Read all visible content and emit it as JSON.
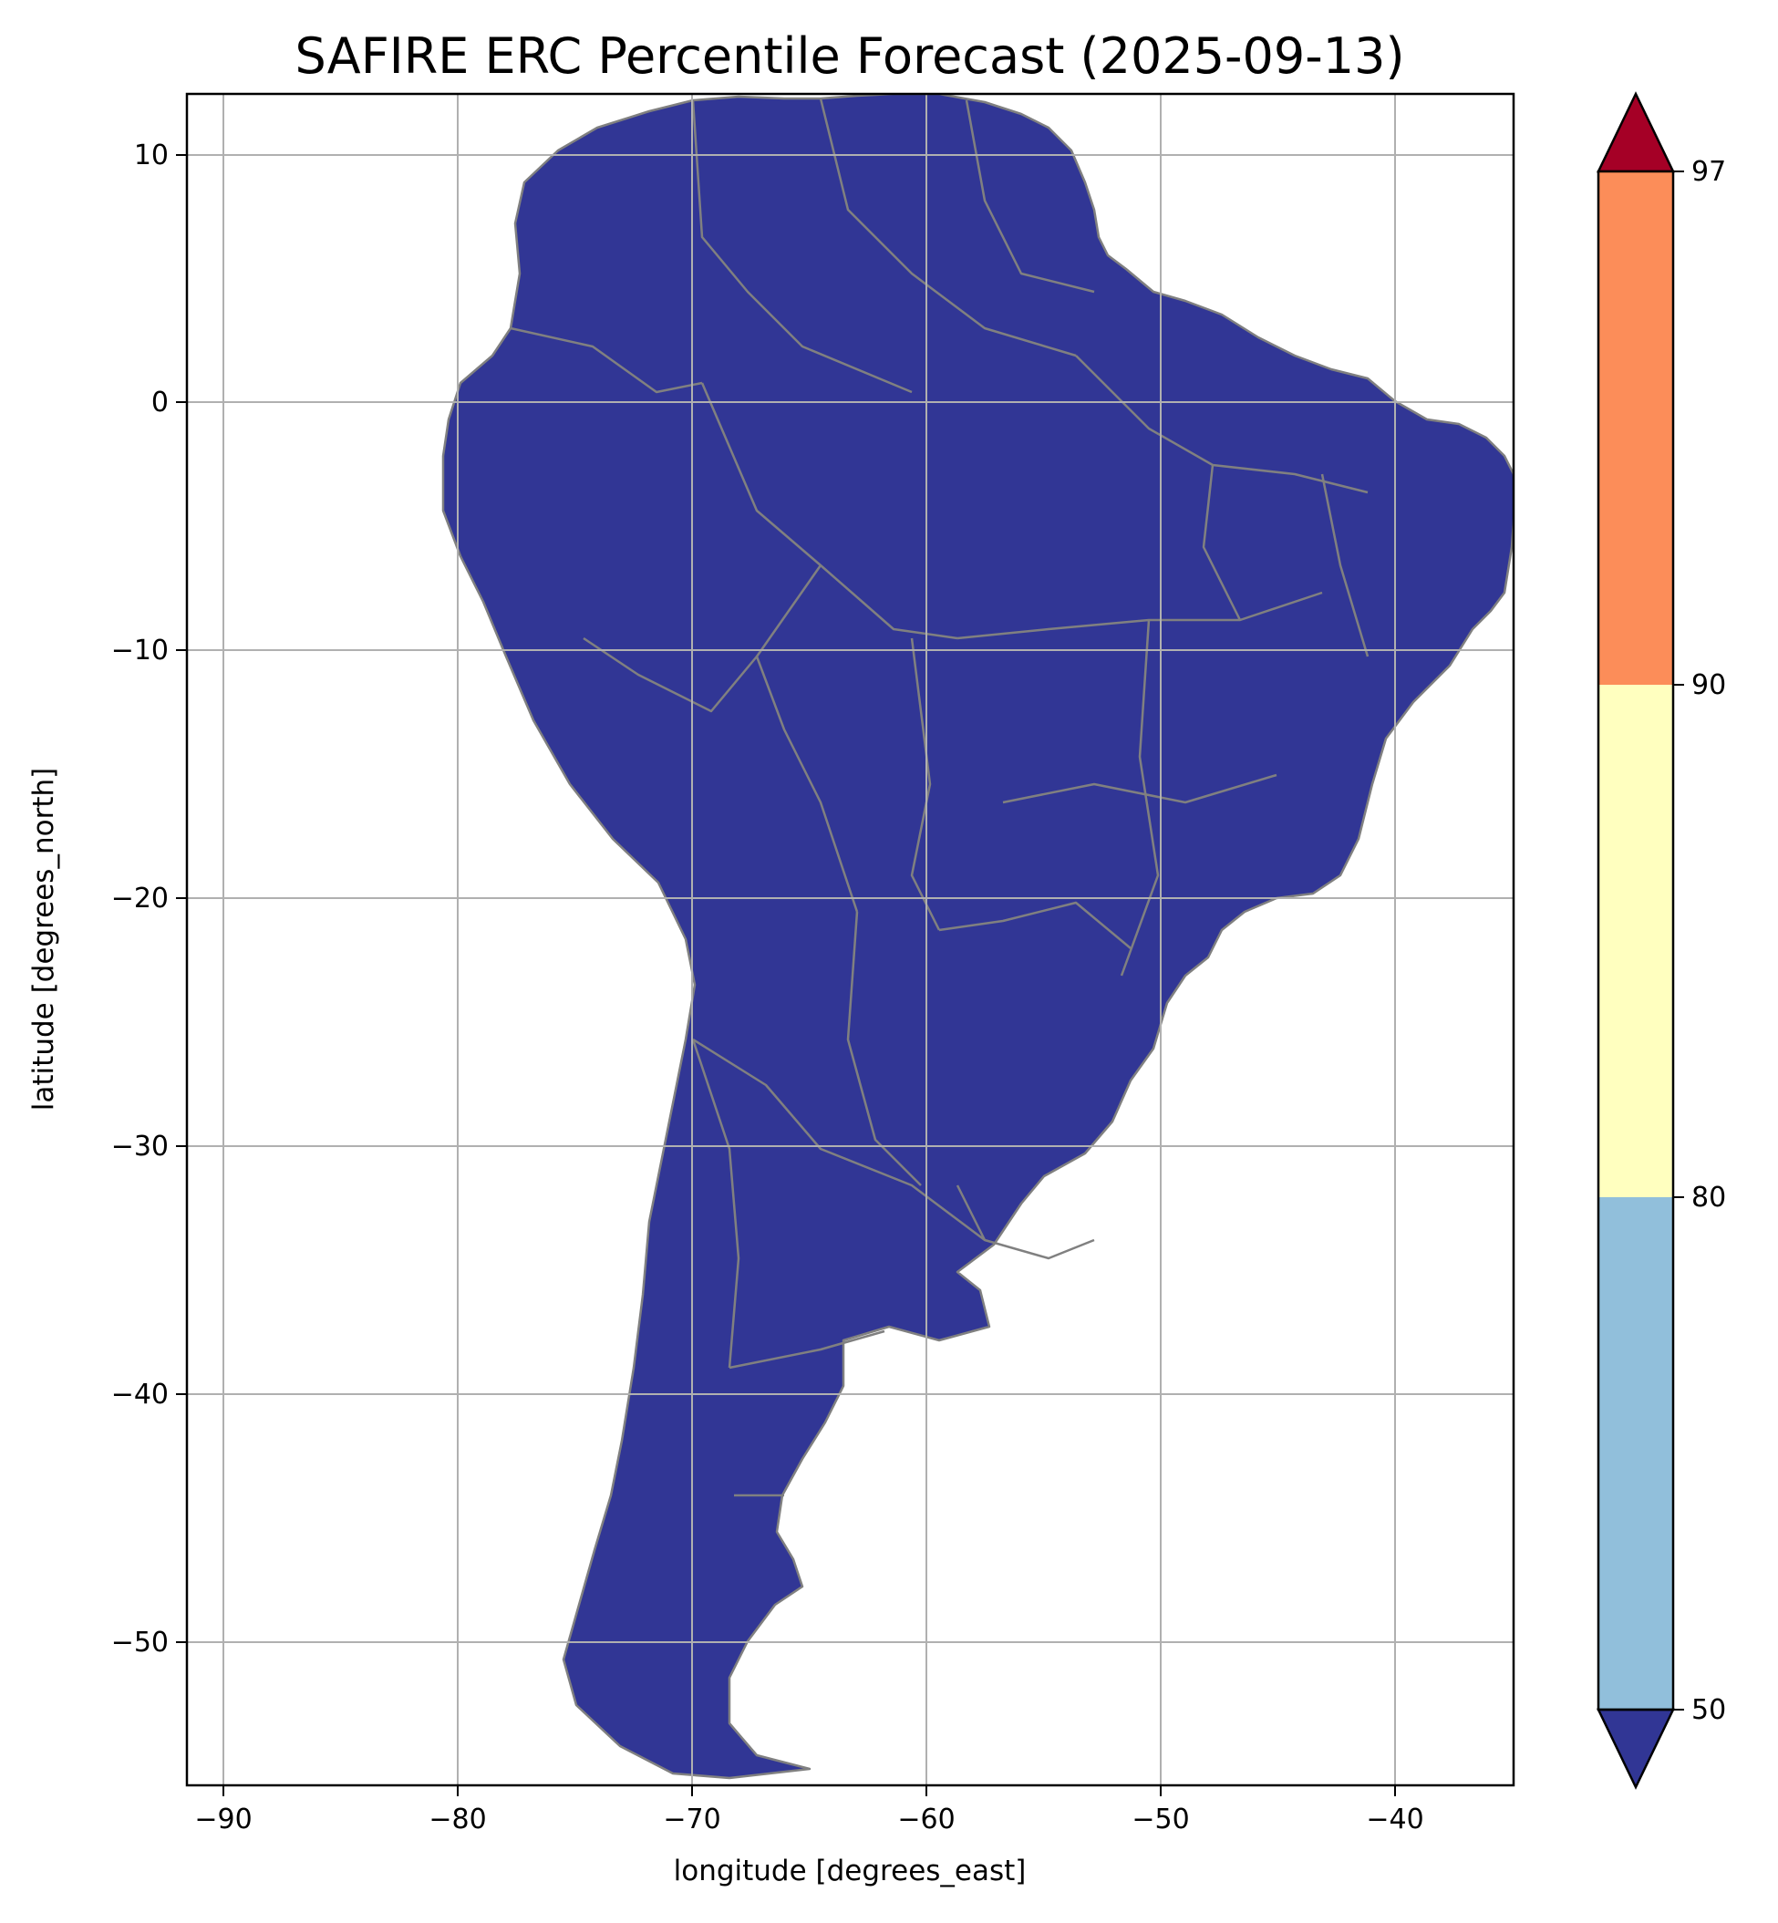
{
  "title": "SAFIRE ERC Percentile Forecast (2025-09-13)",
  "xlabel": "longitude [degrees_east]",
  "ylabel": "latitude [degrees_north]",
  "x_ticks": [
    "−90",
    "−80",
    "−70",
    "−60",
    "−50",
    "−40"
  ],
  "y_ticks": [
    "10",
    "0",
    "−10",
    "−20",
    "−30",
    "−40",
    "−50"
  ],
  "colorbar": {
    "ticks": [
      "50",
      "80",
      "90",
      "97"
    ],
    "colors": {
      "below_50": "#313695",
      "50_80": "#91bfdb",
      "80_90": "#ffffbf",
      "90_97": "#fc8d59",
      "above_97": "#a50026"
    },
    "extend": "both"
  },
  "map": {
    "region": "South America",
    "lon_range": [
      -91.5,
      -35
    ],
    "lat_range": [
      -56,
      12.5
    ],
    "grid": true,
    "border_color": "#808080"
  }
}
